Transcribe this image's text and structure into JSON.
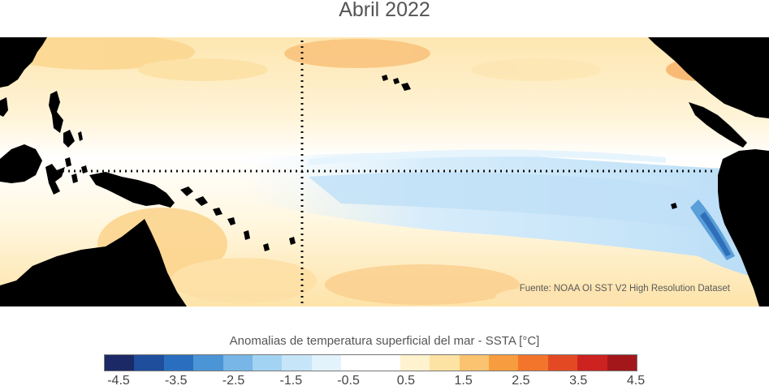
{
  "title": "Abril 2022",
  "source": "Fuente: NOAA OI SST V2 High Resolution Dataset",
  "colorbar": {
    "title": "Anomalias de temperatura superficial del mar - SSTA  [°C]",
    "colors": [
      "#1b2a66",
      "#1f4e9c",
      "#2a6fbf",
      "#4b95d6",
      "#77b6e6",
      "#a3d3f2",
      "#c6e5f8",
      "#e2f3fc",
      "#ffffff",
      "#ffffff",
      "#fff2cf",
      "#fde3a3",
      "#fbc36f",
      "#f89d3f",
      "#f2752b",
      "#e34a23",
      "#cc2220",
      "#a3171b"
    ],
    "tick_labels": [
      "-4.5",
      "-3.5",
      "-2.5",
      "-1.5",
      "-0.5",
      "0.5",
      "1.5",
      "2.5",
      "3.5",
      "4.5"
    ]
  },
  "map": {
    "region": "Tropical Pacific",
    "dotted_lines": [
      "equator",
      "dateline"
    ],
    "land_color": "#000000"
  }
}
